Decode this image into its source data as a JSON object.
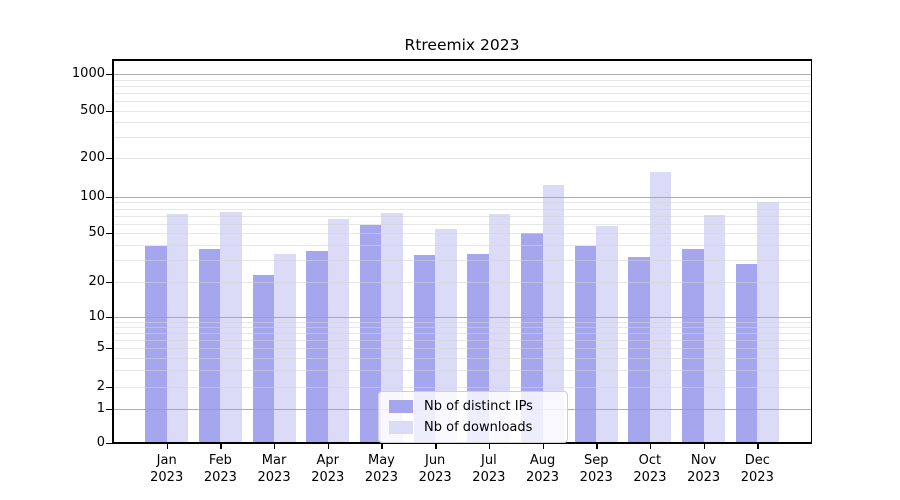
{
  "chart_data": {
    "type": "bar",
    "title": "Rtreemix 2023",
    "categories": [
      "Jan",
      "Feb",
      "Mar",
      "Apr",
      "May",
      "Jun",
      "Jul",
      "Aug",
      "Sep",
      "Oct",
      "Nov",
      "Dec"
    ],
    "category_year": "2023",
    "series": [
      {
        "name": "Nb of distinct IPs",
        "color": "#a6a6ef",
        "values": [
          39,
          37,
          23,
          36,
          58,
          33,
          34,
          50,
          39,
          32,
          37,
          28
        ]
      },
      {
        "name": "Nb of downloads",
        "color": "#dbdbf8",
        "values": [
          72,
          75,
          34,
          66,
          73,
          54,
          72,
          124,
          57,
          155,
          71,
          91
        ]
      }
    ],
    "yscale": "symlog",
    "y_ticks": [
      0,
      1,
      2,
      5,
      10,
      20,
      50,
      100,
      200,
      500,
      1000
    ],
    "y_tick_labels": [
      "0",
      "1",
      "2",
      "5",
      "10",
      "20",
      "50",
      "100",
      "200",
      "500",
      "1000"
    ],
    "ylim": [
      0,
      1300
    ],
    "xlabel": "",
    "ylabel": "",
    "grid": true,
    "legend_position": "lower-center"
  }
}
